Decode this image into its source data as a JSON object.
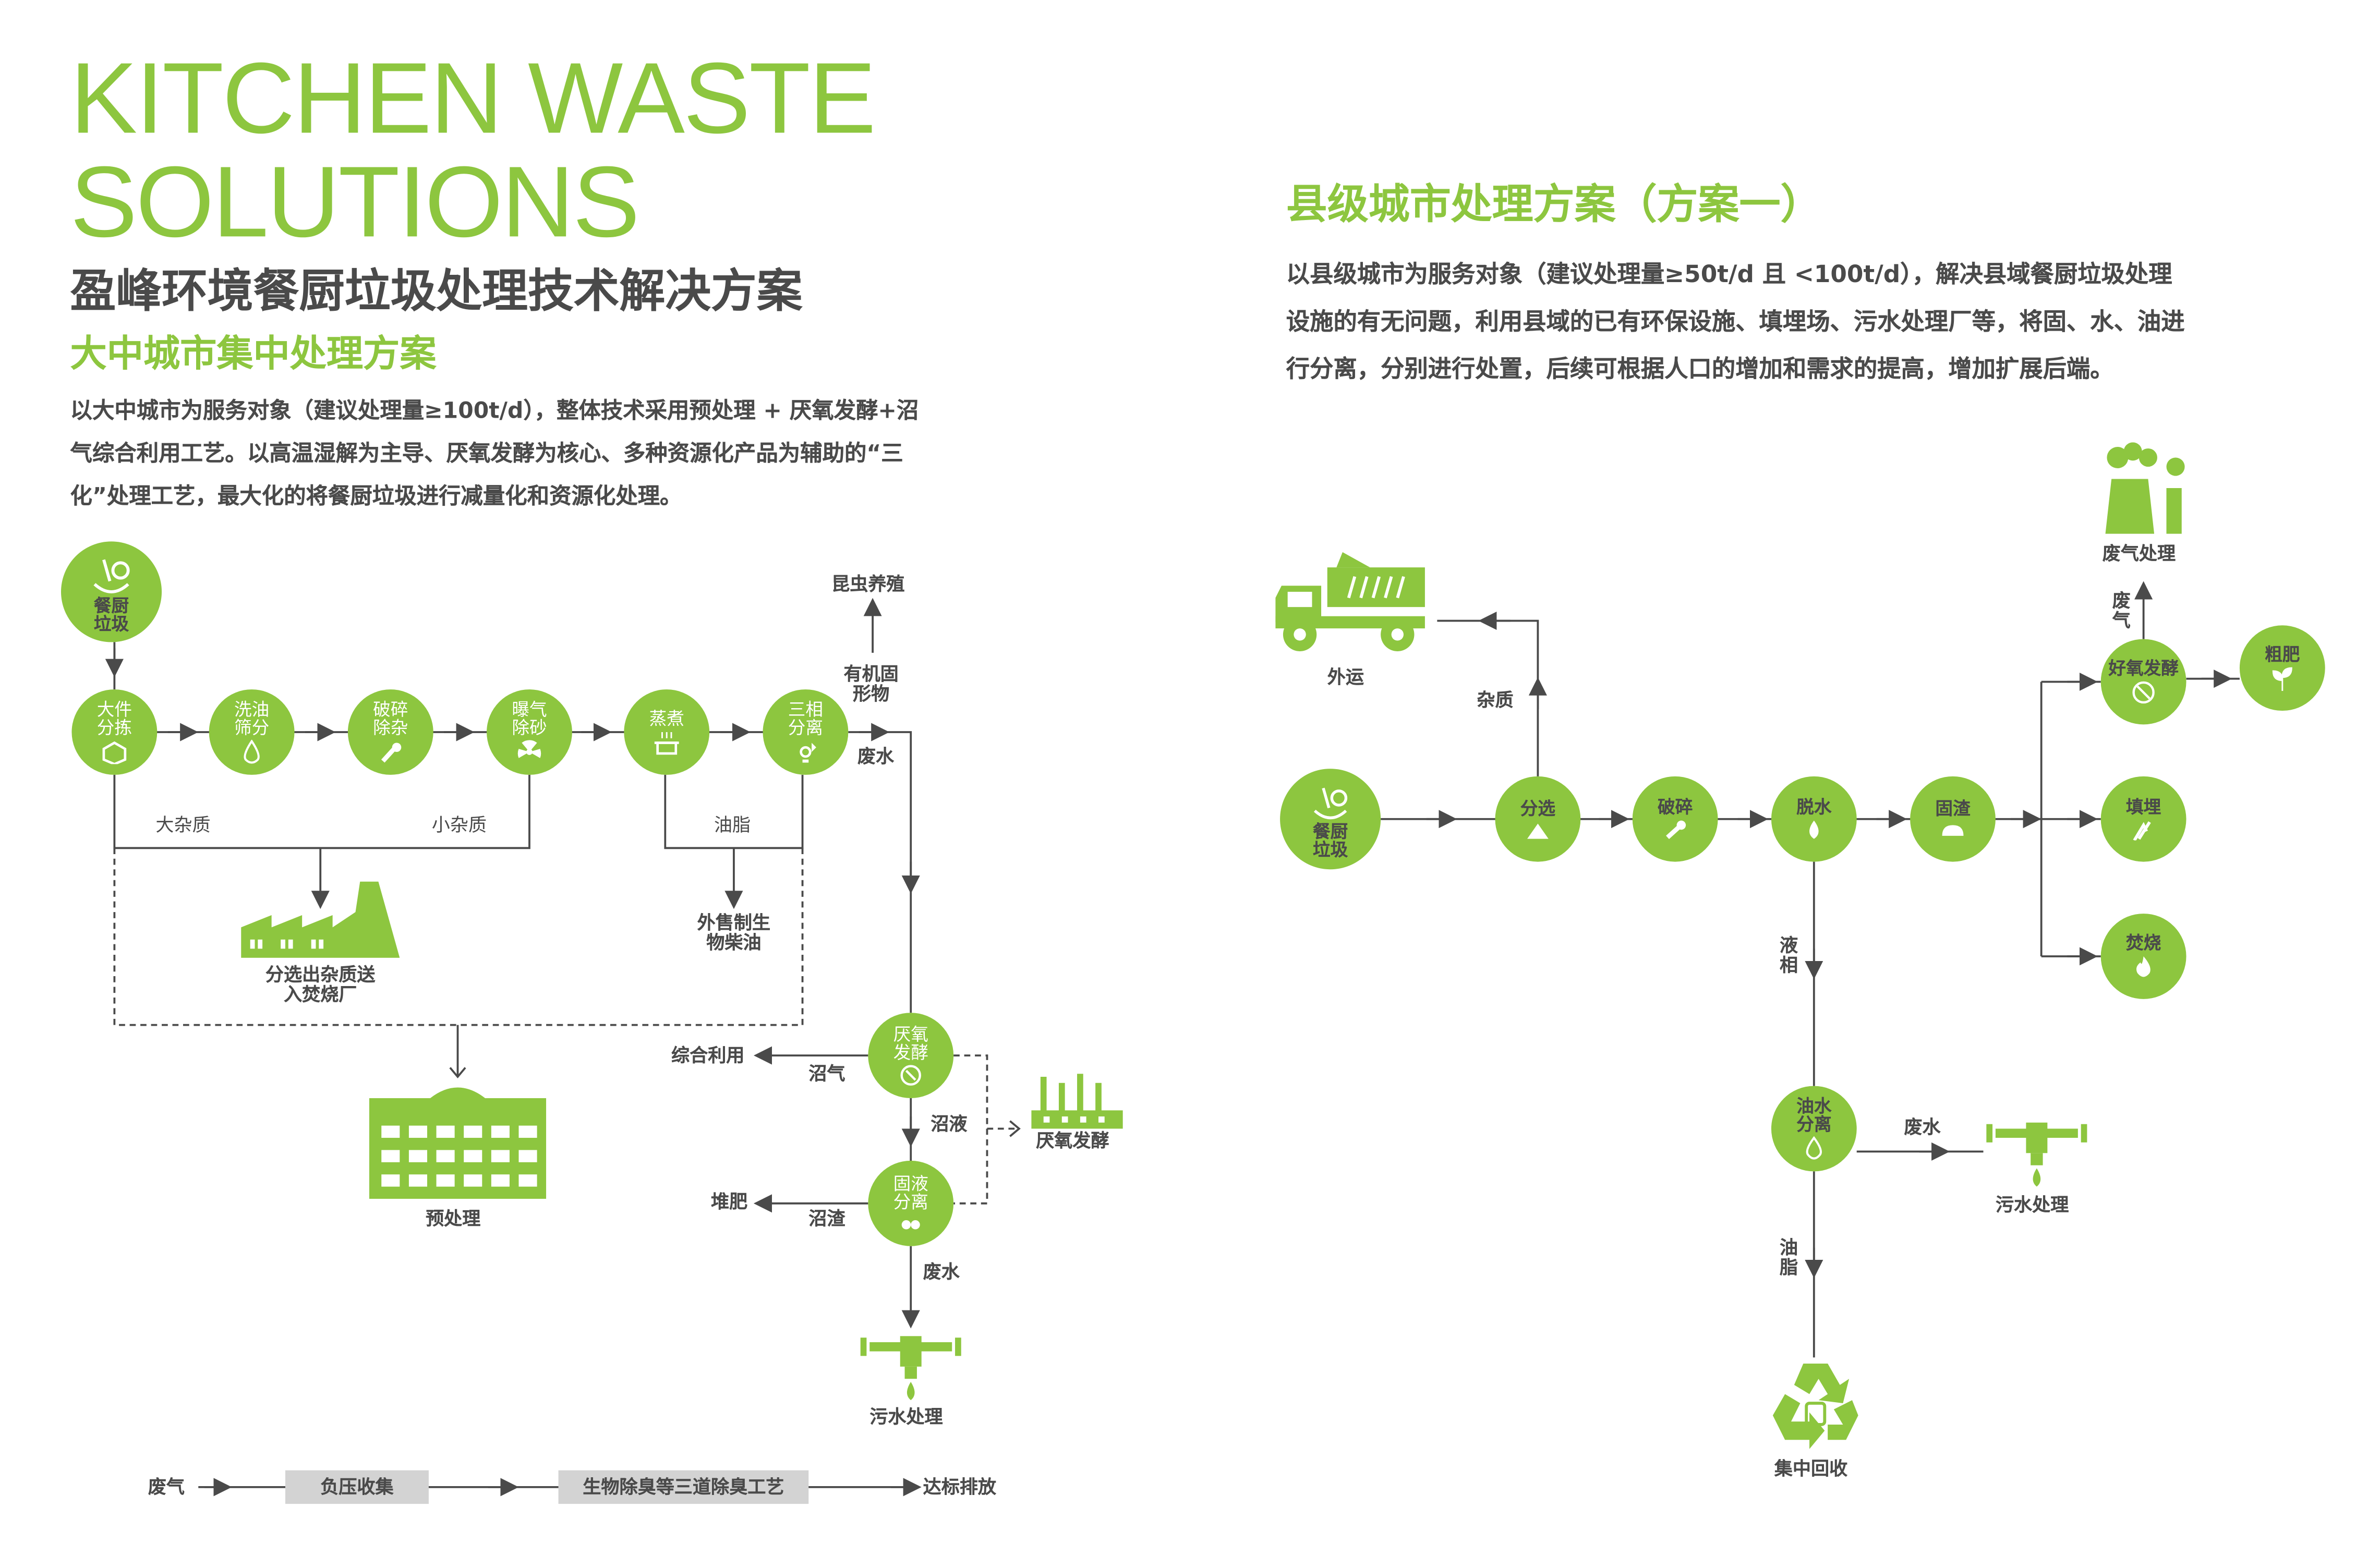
{
  "header": {
    "title_en_line1": "KITCHEN WASTE",
    "title_en_line2": "SOLUTIONS",
    "title_cn": "盈峰环境餐厨垃圾处理技术解决方案"
  },
  "left_plan": {
    "title": "大中城市集中处理方案",
    "description": "以大中城市为服务对象（建议处理量≥100t/d），整体技术采用预处理 + 厌氧发酵+沼气综合利用工艺。以高温湿解为主导、厌氧发酵为核心、多种资源化产品为辅助的“三化”处理工艺，最大化的将餐厨垃圾进行减量化和资源化处理。",
    "source": "餐厨垃圾",
    "steps": [
      "大件分拣",
      "洗油筛分",
      "破碎除杂",
      "曝气除砂",
      "蒸煮",
      "三相分离"
    ],
    "anaerobic": "厌氧发酵",
    "solid_liquid": "固液分离",
    "labels": {
      "insect": "昆虫养殖",
      "organic_solid": "有机固形物",
      "waste_water_1": "废水",
      "large_impurities": "大杂质",
      "small_impurities": "小杂质",
      "grease": "油脂",
      "sorted_impurities": "分选出杂质送入焚烧厂",
      "biodiesel": "外售制生物柴油",
      "pretreatment": "预处理",
      "utilization": "综合利用",
      "biogas": "沼气",
      "biogas_slurry": "沼液",
      "anaerobic_plant": "厌氧发酵",
      "compost": "堆肥",
      "biogas_residue": "沼渣",
      "waste_water_2": "废水",
      "sewage": "污水处理"
    },
    "deodor": {
      "start": "废气",
      "step1": "负压收集",
      "step2": "生物除臭等三道除臭工艺",
      "end": "达标排放"
    }
  },
  "right_plan": {
    "title": "县级城市处理方案（方案一）",
    "description": "以县级城市为服务对象（建议处理量≥50t/d 且 <100t/d），解决县域餐厨垃圾处理设施的有无问题，利用县域的已有环保设施、填埋场、污水处理厂等，将固、水、油进行分离，分别进行处置，后续可根据人口的增加和需求的提高，增加扩展后端。",
    "source": "餐厨垃圾",
    "steps": [
      "分选",
      "破碎",
      "脱水",
      "固渣"
    ],
    "branches": [
      "好氧发酵",
      "填埋",
      "焚烧"
    ],
    "coarse_fertilizer": "粗肥",
    "oil_water": "油水分离",
    "labels": {
      "transport": "外运",
      "impurities": "杂质",
      "exhaust_treatment": "废气处理",
      "exhaust": "废气",
      "liquid": "液相",
      "waste_water": "废水",
      "sewage": "污水处理",
      "grease": "油脂",
      "recycle": "集中回收"
    }
  },
  "colors": {
    "accent": "#8dc63f",
    "text": "#4a4a4a",
    "box": "#d3d3d3"
  }
}
